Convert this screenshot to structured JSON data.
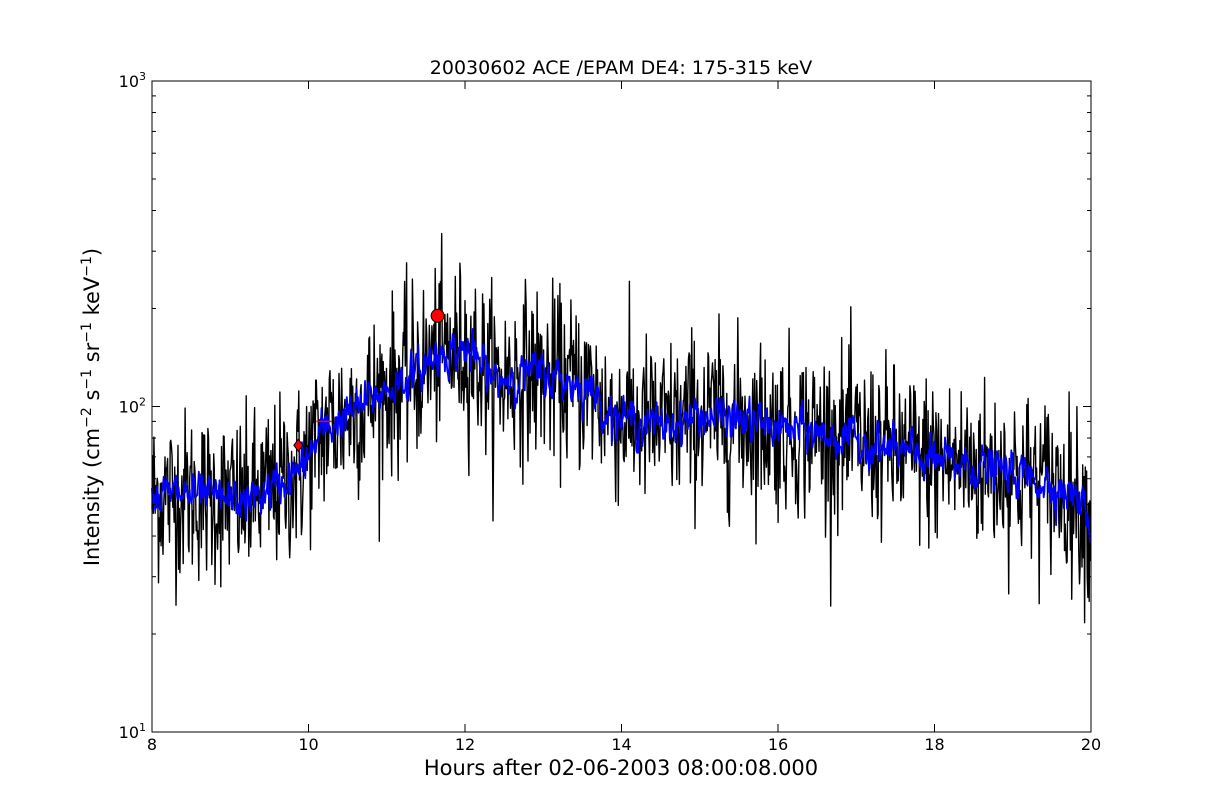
{
  "chart_data": {
    "type": "line",
    "title": "20030602 ACE /EPAM DE4: 175-315 keV",
    "xlabel": "Hours after 02-06-2003 08:00:08.000",
    "ylabel": {
      "main": "Intensity (cm",
      "cm_exp": "−2",
      "s": " s",
      "s_exp": "−1",
      "sr": " sr",
      "sr_exp": "−1",
      "kev": " keV",
      "kev_exp": "−1",
      "close": ")"
    },
    "xlim": [
      8,
      20
    ],
    "ylim": [
      10,
      1000
    ],
    "yscale": "log",
    "grid": false,
    "x_ticks": [
      8,
      10,
      12,
      14,
      16,
      18,
      20
    ],
    "y_ticks": [
      {
        "value": 10,
        "base": "10",
        "exp": "1"
      },
      {
        "value": 100,
        "base": "10",
        "exp": "2"
      },
      {
        "value": 1000,
        "base": "10",
        "exp": "3"
      }
    ],
    "trend": {
      "x": [
        8.0,
        8.4,
        8.8,
        9.2,
        9.6,
        9.9,
        10.2,
        10.6,
        11.0,
        11.4,
        11.7,
        12.0,
        12.4,
        12.8,
        13.2,
        13.6,
        13.8,
        14.0,
        14.5,
        15.0,
        15.5,
        16.0,
        16.5,
        17.0,
        17.5,
        18.0,
        18.5,
        19.0,
        19.5,
        19.8,
        20.0
      ],
      "y": [
        53,
        54,
        52,
        51,
        57,
        64,
        85,
        98,
        113,
        128,
        148,
        150,
        120,
        128,
        122,
        113,
        98,
        92,
        87,
        94,
        91,
        86,
        83,
        78,
        73,
        68,
        66,
        62,
        58,
        53,
        44
      ]
    },
    "series": [
      {
        "name": "",
        "color": "#000000",
        "noise_sigma": 0.13,
        "x_step": 0.0083
      },
      {
        "name": "",
        "color": "#0000ff",
        "noise_sigma": 0.06,
        "x_step": 0.0083
      }
    ],
    "markers": [
      {
        "x": 9.87,
        "y": 76,
        "color": "#ff0000",
        "shape": "diamond"
      },
      {
        "x": 11.65,
        "y": 190,
        "color": "#ff0000",
        "shape": "circle"
      }
    ],
    "segments": [
      {
        "x": [
          10.1,
          10.3
        ],
        "y": [
          90,
          90
        ],
        "color": "#ff0000"
      }
    ]
  }
}
